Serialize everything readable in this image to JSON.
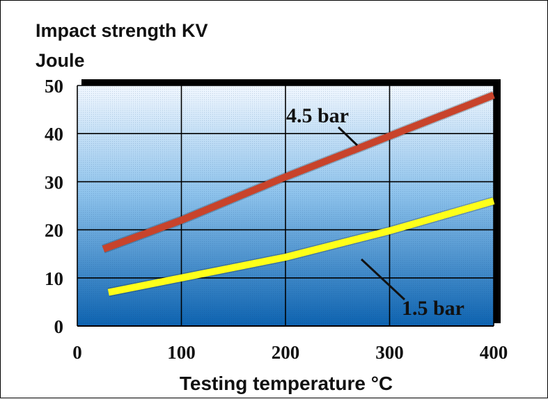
{
  "chart_data": {
    "type": "line",
    "ylabel_lines": [
      "Impact strength KV",
      "Joule"
    ],
    "xlabel": "Testing temperature °C",
    "xlim": [
      0,
      400
    ],
    "ylim": [
      0,
      50
    ],
    "x_ticks": [
      "0",
      "100",
      "200",
      "300",
      "400"
    ],
    "y_ticks": [
      "0",
      "10",
      "20",
      "30",
      "40",
      "50"
    ],
    "grid": true,
    "series": [
      {
        "name": "4.5 bar",
        "color": "#c8432b",
        "x": [
          25,
          100,
          200,
          300,
          400
        ],
        "y": [
          16,
          22,
          31,
          39.5,
          48
        ]
      },
      {
        "name": "1.5 bar",
        "color": "#ffff1a",
        "x": [
          30,
          100,
          200,
          300,
          400
        ],
        "y": [
          7,
          10,
          14.3,
          19.8,
          26
        ]
      }
    ]
  }
}
